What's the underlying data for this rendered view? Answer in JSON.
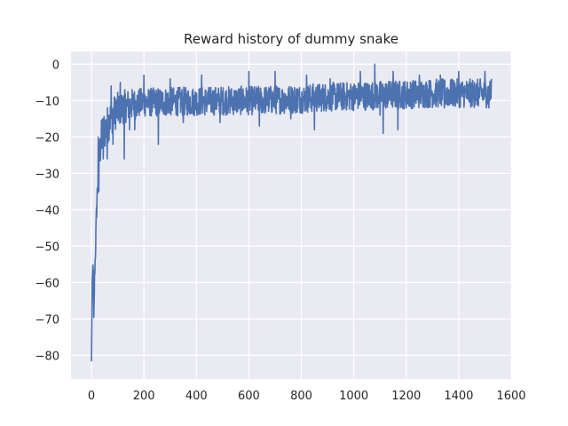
{
  "chart_data": {
    "type": "line",
    "title": "Reward history of dummy snake",
    "xlabel": "",
    "ylabel": "",
    "xlim": [
      -78,
      1600
    ],
    "ylim": [
      -86.5,
      3.5
    ],
    "xticks": [
      0,
      200,
      400,
      600,
      800,
      1000,
      1200,
      1400,
      1600
    ],
    "yticks": [
      0,
      -10,
      -20,
      -30,
      -40,
      -50,
      -60,
      -70,
      -80
    ],
    "grid": true,
    "legend": "none",
    "series": [
      {
        "color": "#4c72b0",
        "x_start": 0,
        "x_end": 1525,
        "anchors": [
          [
            0,
            -82
          ],
          [
            3,
            -60
          ],
          [
            6,
            -54
          ],
          [
            9,
            -71
          ],
          [
            12,
            -58
          ],
          [
            15,
            -52
          ],
          [
            18,
            -44
          ],
          [
            21,
            -37
          ],
          [
            25,
            -32
          ],
          [
            30,
            -25
          ],
          [
            35,
            -22
          ],
          [
            40,
            -20
          ],
          [
            50,
            -18
          ],
          [
            60,
            -17
          ],
          [
            70,
            -15
          ],
          [
            80,
            -14
          ],
          [
            100,
            -12.5
          ],
          [
            130,
            -11.5
          ],
          [
            160,
            -11
          ],
          [
            200,
            -10.5
          ],
          [
            300,
            -10.3
          ],
          [
            400,
            -10.2
          ],
          [
            500,
            -10
          ],
          [
            600,
            -10
          ],
          [
            700,
            -9.8
          ],
          [
            800,
            -9.5
          ],
          [
            900,
            -9
          ],
          [
            1000,
            -8.8
          ],
          [
            1100,
            -8.5
          ],
          [
            1200,
            -8.3
          ],
          [
            1300,
            -8
          ],
          [
            1400,
            -8
          ],
          [
            1500,
            -8
          ],
          [
            1525,
            -8
          ]
        ],
        "noise": [
          [
            0,
            1
          ],
          [
            40,
            6
          ],
          [
            80,
            5
          ],
          [
            200,
            4
          ],
          [
            600,
            4
          ],
          [
            1000,
            4
          ],
          [
            1525,
            4
          ]
        ],
        "spikes": [
          [
            26,
            -20
          ],
          [
            28,
            -35
          ],
          [
            45,
            -26
          ],
          [
            60,
            -26
          ],
          [
            75,
            -6
          ],
          [
            82,
            -22
          ],
          [
            110,
            -5
          ],
          [
            125,
            -26
          ],
          [
            145,
            -18
          ],
          [
            165,
            -18
          ],
          [
            200,
            -3
          ],
          [
            255,
            -22
          ],
          [
            300,
            -4
          ],
          [
            350,
            -16
          ],
          [
            420,
            -3
          ],
          [
            490,
            -16
          ],
          [
            600,
            -2
          ],
          [
            640,
            -17
          ],
          [
            700,
            -2
          ],
          [
            760,
            -15
          ],
          [
            820,
            -3
          ],
          [
            850,
            -18
          ],
          [
            910,
            -4
          ],
          [
            1025,
            -2
          ],
          [
            1080,
            0
          ],
          [
            1100,
            -14
          ],
          [
            1112,
            -19
          ],
          [
            1150,
            -2
          ],
          [
            1168,
            -18
          ],
          [
            1250,
            -3
          ],
          [
            1330,
            -3
          ],
          [
            1345,
            -12
          ],
          [
            1400,
            -2
          ],
          [
            1460,
            -5
          ],
          [
            1500,
            -2
          ],
          [
            1515,
            -12
          ],
          [
            1525,
            -4
          ]
        ]
      }
    ]
  }
}
